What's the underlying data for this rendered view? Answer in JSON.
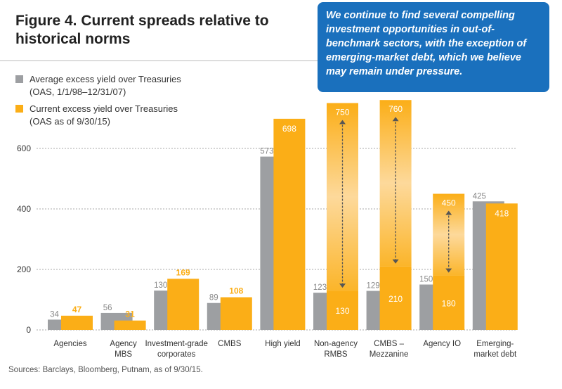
{
  "title": "Figure 4. Current spreads relative to historical norms",
  "callout": "We continue to find several compelling investment opportunities in out-of-benchmark sectors, with the exception of emerging-market debt, which we believe may remain under pressure.",
  "legend": [
    {
      "line1": "Average excess yield over Treasuries",
      "line2": "(OAS, 1/1/98–12/31/07)",
      "color": "#9d9fa2"
    },
    {
      "line1": "Current excess yield over Treasuries",
      "line2": "(OAS as of 9/30/15)",
      "color": "#fbae17"
    }
  ],
  "source": "Sources: Barclays, Bloomberg, Putnam, as of 9/30/15.",
  "chart_data": {
    "type": "bar",
    "title": "Figure 4. Current spreads relative to historical norms",
    "ylim": [
      0,
      800
    ],
    "yticks": [
      0,
      200,
      400,
      600
    ],
    "grid": true,
    "legend_position": "top-left",
    "categories": [
      [
        "Agencies"
      ],
      [
        "Agency",
        "MBS"
      ],
      [
        "Investment-grade",
        "corporates"
      ],
      [
        "CMBS"
      ],
      [
        "High yield"
      ],
      [
        "Non-agency",
        "RMBS"
      ],
      [
        "CMBS –",
        "Mezzanine"
      ],
      [
        "Agency IO"
      ],
      [
        "Emerging-",
        "market debt"
      ]
    ],
    "series": [
      {
        "name": "Average excess yield over Treasuries (OAS, 1/1/98–12/31/07)",
        "values": [
          34,
          56,
          130,
          89,
          573,
          123,
          129,
          150,
          425
        ]
      },
      {
        "name": "Current excess yield over Treasuries (OAS as of 9/30/15)",
        "values": [
          47,
          31,
          169,
          108,
          698,
          null,
          null,
          null,
          418
        ],
        "ranges": [
          null,
          null,
          null,
          null,
          null,
          [
            130,
            750
          ],
          [
            210,
            760
          ],
          [
            180,
            450
          ],
          null
        ]
      }
    ]
  }
}
